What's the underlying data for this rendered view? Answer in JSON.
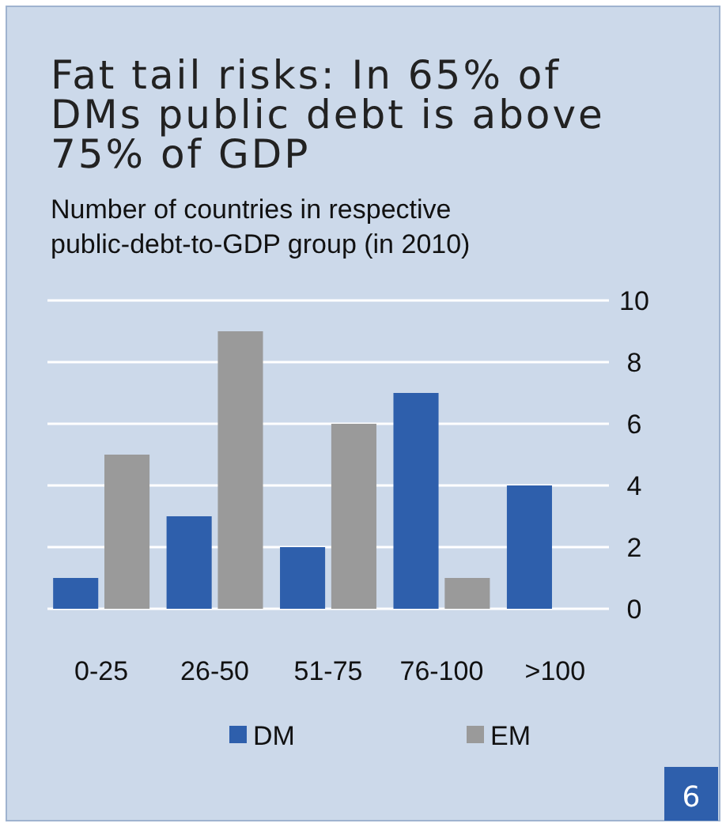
{
  "chart_data": {
    "type": "bar",
    "title": "Fat tail risks: In 65% of DMs public debt is above 75% of GDP",
    "subtitle": "Number of countries in respective public-debt-to-GDP group (in 2010)",
    "categories": [
      "0-25",
      "26-50",
      "51-75",
      "76-100",
      ">100"
    ],
    "series": [
      {
        "name": "DM",
        "color": "#2e5fac",
        "values": [
          1,
          3,
          2,
          7,
          4
        ]
      },
      {
        "name": "EM",
        "color": "#9a9a9a",
        "values": [
          5,
          9,
          6,
          1,
          0
        ]
      }
    ],
    "ylim": [
      0,
      10
    ],
    "yticks": [
      0,
      2,
      4,
      6,
      8,
      10
    ],
    "grid": "y",
    "legend": "bottom",
    "annotations": [
      "6"
    ]
  }
}
